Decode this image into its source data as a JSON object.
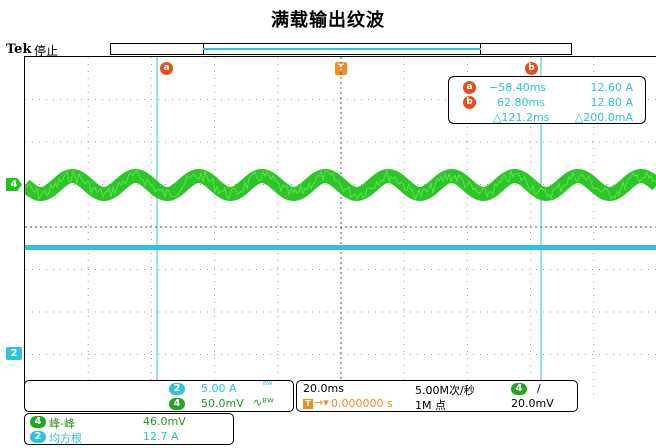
{
  "page_title": "满载输出纹波",
  "scope": {
    "brand": "Tek",
    "run_state": "停止"
  },
  "markers": {
    "cursor_a": "a",
    "cursor_b": "b",
    "trigger": "T"
  },
  "cursor_readout": {
    "a_time": "−58.40ms",
    "a_value": "12.60 A",
    "b_time": "62.80ms",
    "b_value": "12.80 A",
    "delta_time": "△121.2ms",
    "delta_value": "△200.0mA"
  },
  "channel_tags": {
    "ch4": "4",
    "ch2": "2"
  },
  "channel_settings": {
    "ch2_label": "2",
    "ch2_scale": "5.00 A",
    "ch2_coupling_icon": "bw-limit-icon",
    "ch4_label": "4",
    "ch4_scale": "50.0mV",
    "ch4_coupling_icon": "ac-bw-icon"
  },
  "timebase": {
    "scale": "20.0ms",
    "sample_rate": "5.00M次/秒",
    "position": "0.000000 s",
    "record_length": "1M 点",
    "trigger_channel": "4",
    "trigger_slope": "/",
    "trigger_level": "20.0mV"
  },
  "measurements": [
    {
      "channel": "4",
      "name": "峰-峰",
      "value": "46.0mV",
      "color": "green"
    },
    {
      "channel": "2",
      "name": "均方根",
      "value": "12.7 A",
      "color": "cyan"
    }
  ],
  "colors": {
    "ch4": "#22c31c",
    "ch2": "#2bc4d8",
    "cursor_marker": "#e64f1c",
    "trigger": "#f28c1e"
  },
  "waveforms": {
    "ch4_ripple_cycles": 20,
    "ch2_trace": "flat"
  }
}
